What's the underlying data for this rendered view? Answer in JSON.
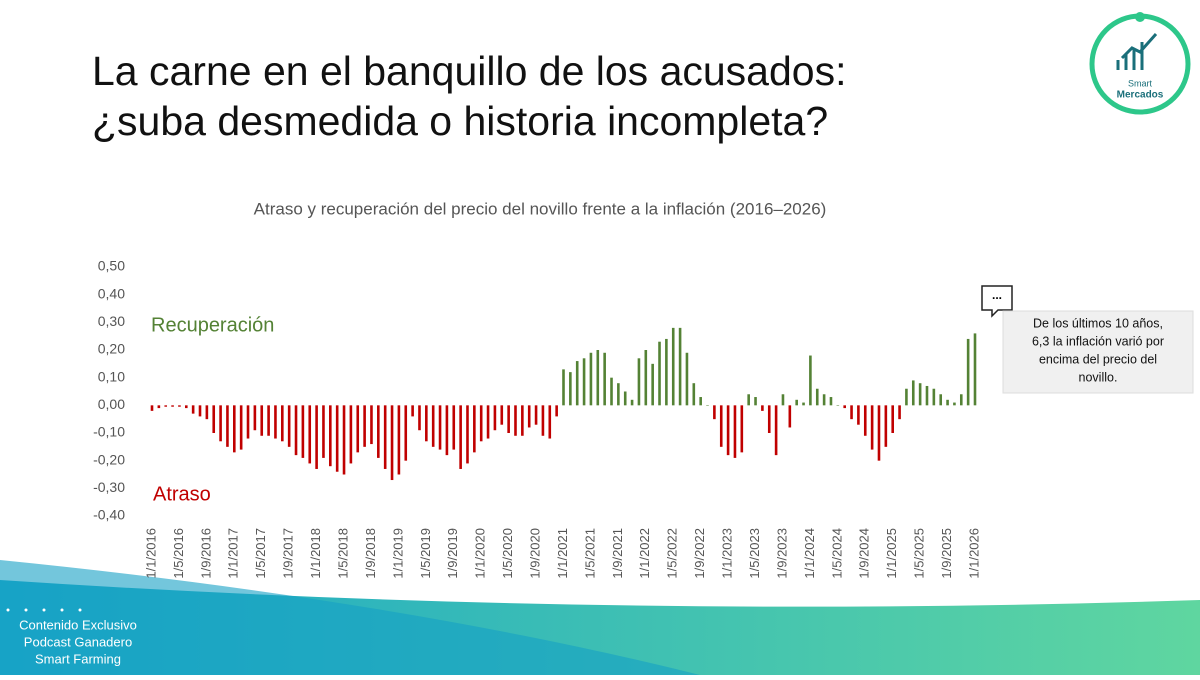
{
  "header": {
    "title_lines": [
      "La carne en el banquillo de los acusados:",
      "¿suba desmedida o historia incompleta?"
    ],
    "logo": {
      "line1": "Smart",
      "line2": "Mercados"
    }
  },
  "chart_data": {
    "type": "bar",
    "title": "Atraso y recuperación del precio del novillo frente a la inflación (2016–2026)",
    "categories": [
      "1/1/2016",
      null,
      null,
      null,
      "1/5/2016",
      null,
      null,
      null,
      "1/9/2016",
      null,
      null,
      null,
      "1/1/2017",
      null,
      null,
      null,
      "1/5/2017",
      null,
      null,
      null,
      "1/9/2017",
      null,
      null,
      null,
      "1/1/2018",
      null,
      null,
      null,
      "1/5/2018",
      null,
      null,
      null,
      "1/9/2018",
      null,
      null,
      null,
      "1/1/2019",
      null,
      null,
      null,
      "1/5/2019",
      null,
      null,
      null,
      "1/9/2019",
      null,
      null,
      null,
      "1/1/2020",
      null,
      null,
      null,
      "1/5/2020",
      null,
      null,
      null,
      "1/9/2020",
      null,
      null,
      null,
      "1/1/2021",
      null,
      null,
      null,
      "1/5/2021",
      null,
      null,
      null,
      "1/9/2021",
      null,
      null,
      null,
      "1/1/2022",
      null,
      null,
      null,
      "1/5/2022",
      null,
      null,
      null,
      "1/9/2022",
      null,
      null,
      null,
      "1/1/2023",
      null,
      null,
      null,
      "1/5/2023",
      null,
      null,
      null,
      "1/9/2023",
      null,
      null,
      null,
      "1/1/2024",
      null,
      null,
      null,
      "1/5/2024",
      null,
      null,
      null,
      "1/9/2024",
      null,
      null,
      null,
      "1/1/2025",
      null,
      null,
      null,
      "1/5/2025",
      null,
      null,
      null,
      "1/9/2025",
      null,
      null,
      null,
      "1/1/2026"
    ],
    "values": [
      -0.02,
      -0.01,
      -0.005,
      -0.005,
      -0.005,
      -0.01,
      -0.03,
      -0.04,
      -0.05,
      -0.1,
      -0.13,
      -0.15,
      -0.17,
      -0.16,
      -0.12,
      -0.09,
      -0.11,
      -0.11,
      -0.12,
      -0.13,
      -0.15,
      -0.18,
      -0.19,
      -0.21,
      -0.23,
      -0.19,
      -0.22,
      -0.24,
      -0.25,
      -0.21,
      -0.17,
      -0.15,
      -0.14,
      -0.19,
      -0.23,
      -0.27,
      -0.25,
      -0.2,
      -0.04,
      -0.09,
      -0.13,
      -0.15,
      -0.16,
      -0.18,
      -0.16,
      -0.23,
      -0.21,
      -0.17,
      -0.13,
      -0.12,
      -0.09,
      -0.07,
      -0.1,
      -0.11,
      -0.11,
      -0.08,
      -0.07,
      -0.11,
      -0.12,
      -0.04,
      0.13,
      0.12,
      0.16,
      0.17,
      0.19,
      0.2,
      0.19,
      0.1,
      0.08,
      0.05,
      0.02,
      0.17,
      0.2,
      0.15,
      0.23,
      0.24,
      0.28,
      0.28,
      0.19,
      0.08,
      0.03,
      0,
      -0.05,
      -0.15,
      -0.18,
      -0.19,
      -0.17,
      0.04,
      0.03,
      -0.02,
      -0.1,
      -0.18,
      0.04,
      -0.08,
      0.02,
      0.01,
      0.18,
      0.06,
      0.04,
      0.03,
      0,
      -0.01,
      -0.05,
      -0.07,
      -0.11,
      -0.16,
      -0.2,
      -0.15,
      -0.1,
      -0.05,
      0.06,
      0.09,
      0.08,
      0.07,
      0.06,
      0.04,
      0.02,
      0.01,
      0.04,
      0.24,
      0.26
    ],
    "positive_color": "#548235",
    "negative_color": "#c00000",
    "ylim": [
      -0.4,
      0.5
    ],
    "yticks": [
      {
        "value": -0.4,
        "label": "-0,40"
      },
      {
        "value": -0.3,
        "label": "-0,30"
      },
      {
        "value": -0.2,
        "label": "-0,20"
      },
      {
        "value": -0.1,
        "label": "-0,10"
      },
      {
        "value": 0,
        "label": "0,00"
      },
      {
        "value": 0.1,
        "label": "0,10"
      },
      {
        "value": 0.2,
        "label": "0,20"
      },
      {
        "value": 0.3,
        "label": "0,30"
      },
      {
        "value": 0.4,
        "label": "0,40"
      },
      {
        "value": 0.5,
        "label": "0,50"
      }
    ],
    "grid": false,
    "annotations": {
      "positive": "Recuperación",
      "negative": "Atraso",
      "comment_lines": [
        "De los últimos 10 años,",
        "6,3 la inflación varió por",
        "encima del precio del",
        "novillo."
      ],
      "comment_icon": "..."
    }
  },
  "footer": {
    "lines": [
      "Contenido Exclusivo",
      "Podcast Ganadero",
      "Smart Farming"
    ]
  }
}
